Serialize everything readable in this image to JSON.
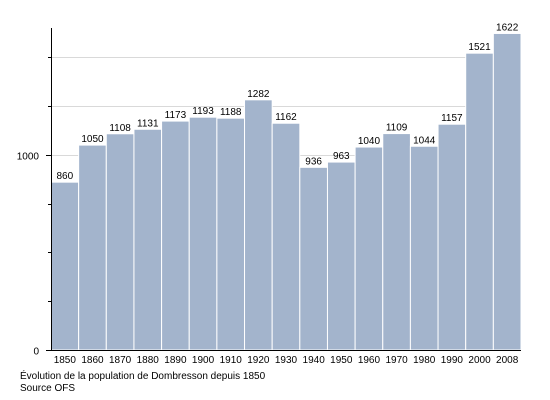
{
  "chart_data": {
    "type": "bar",
    "categories": [
      "1850",
      "1860",
      "1870",
      "1880",
      "1890",
      "1900",
      "1910",
      "1920",
      "1930",
      "1940",
      "1950",
      "1960",
      "1970",
      "1980",
      "1990",
      "2000",
      "2008"
    ],
    "values": [
      860,
      1050,
      1108,
      1131,
      1173,
      1193,
      1188,
      1282,
      1162,
      936,
      963,
      1040,
      1109,
      1044,
      1157,
      1521,
      1622
    ],
    "yticks": [
      0,
      1000
    ],
    "ylim": [
      0,
      1650
    ],
    "grid": true,
    "legend": "none",
    "bar_color": "#a3b4cc"
  },
  "caption": {
    "line1": "Évolution de la population de Dombresson depuis 1850",
    "line2": "Source OFS"
  }
}
